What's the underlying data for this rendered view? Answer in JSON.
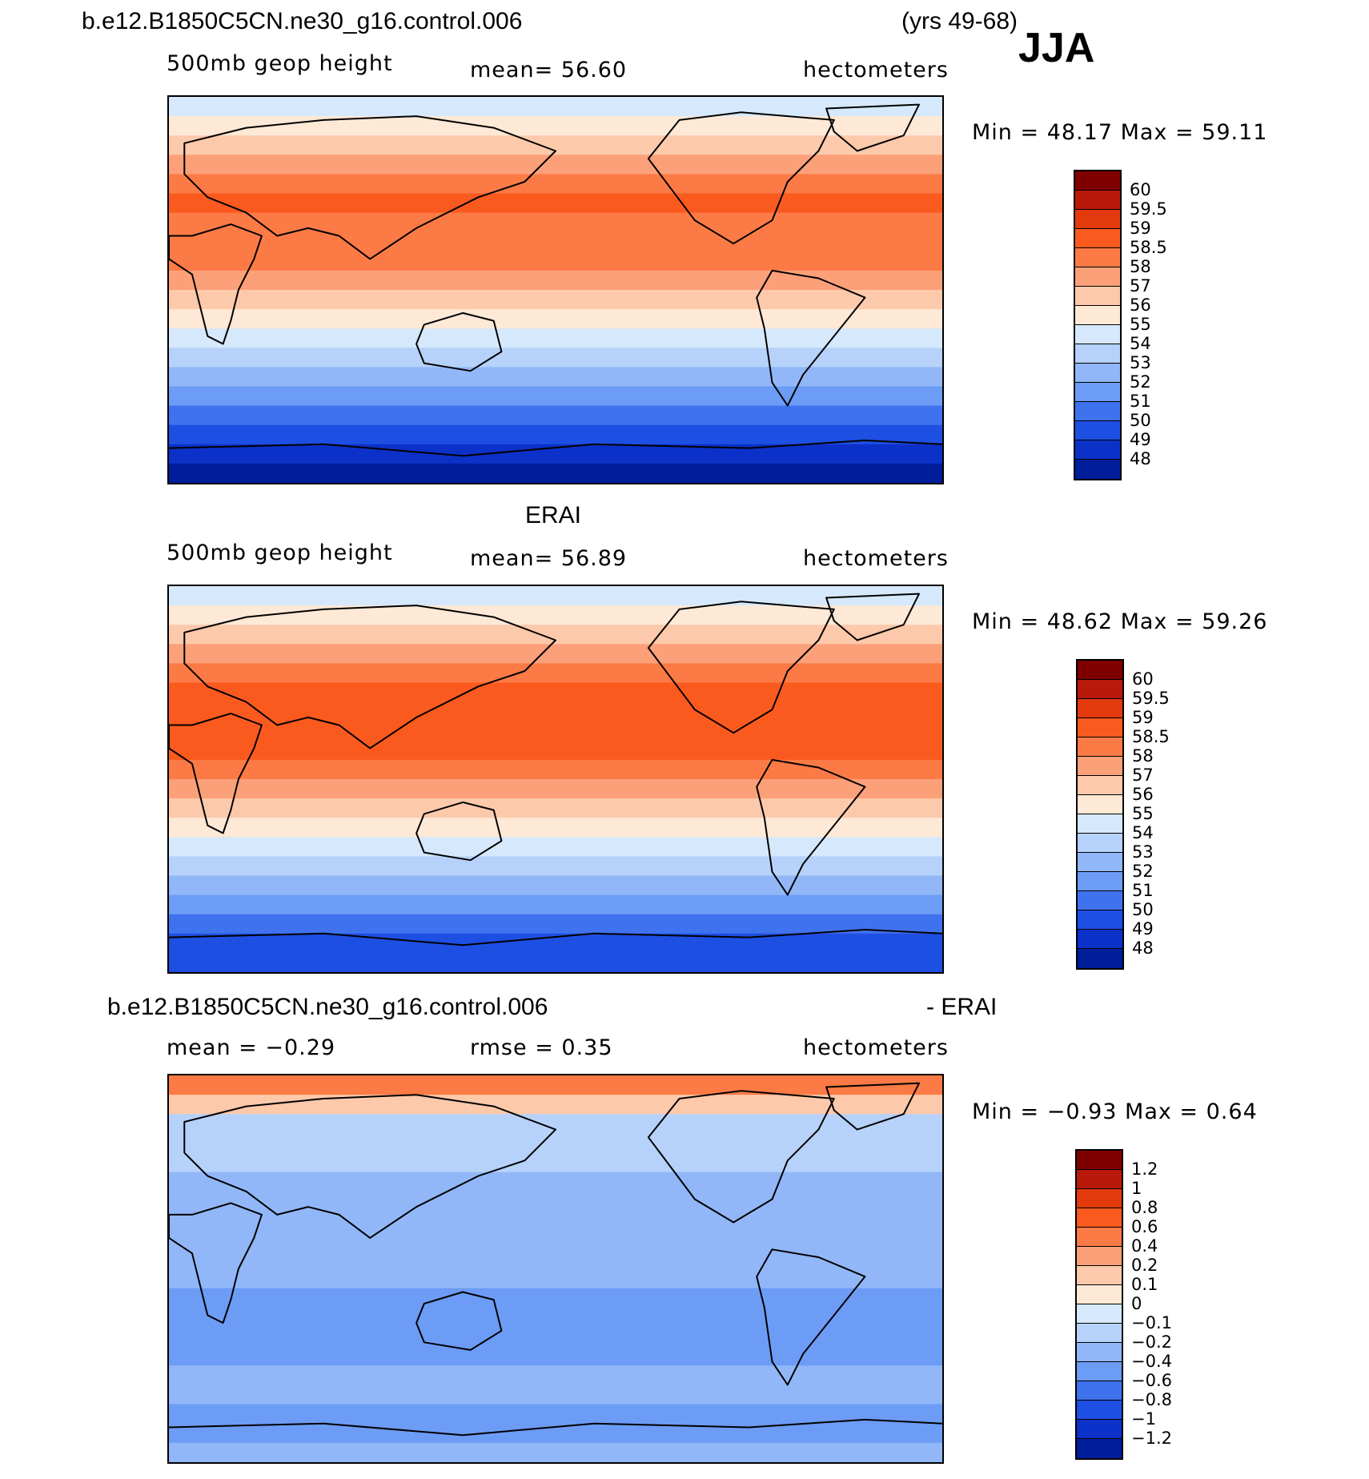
{
  "header": {
    "case_name": "b.e12.B1850C5CN.ne30_g16.control.006",
    "years": "(yrs 49-68)",
    "season": "JJA"
  },
  "panels": [
    {
      "id": "model",
      "title": "",
      "variable": "500mb  geop  height",
      "stat_text": "mean=   56.60",
      "units": "hectometers",
      "minmax_text": "Min  =    48.17  Max  =    59.11",
      "colorbar": {
        "labels": [
          "60",
          "59.5",
          "59",
          "58.5",
          "58",
          "57",
          "56",
          "55",
          "54",
          "53",
          "52",
          "51",
          "50",
          "49",
          "48"
        ],
        "colors": [
          "#7f0000",
          "#b8190a",
          "#e23a0c",
          "#fb5a1f",
          "#fc7a45",
          "#fca07a",
          "#fdc9ab",
          "#fde9d6",
          "#d6e8fb",
          "#b6d2fa",
          "#91b7f8",
          "#6c9cf5",
          "#3f72ee",
          "#1e4fe3",
          "#0b31c8",
          "#001d9a"
        ]
      },
      "map_stripes": [
        "#d6e8fb",
        "#fde9d6",
        "#fdc9ab",
        "#fca07a",
        "#fc7a45",
        "#fb5a1f",
        "#fc7a45",
        "#fc7a45",
        "#fc7a45",
        "#fca07a",
        "#fdc9ab",
        "#fde9d6",
        "#d6e8fb",
        "#b6d2fa",
        "#91b7f8",
        "#6c9cf5",
        "#3f72ee",
        "#1e4fe3",
        "#0b31c8",
        "#001d9a"
      ]
    },
    {
      "id": "obs",
      "title": "ERAI",
      "variable": "500mb  geop  height",
      "stat_text": "mean=   56.89",
      "units": "hectometers",
      "minmax_text": "Min  =    48.62  Max  =    59.26",
      "colorbar": {
        "labels": [
          "60",
          "59.5",
          "59",
          "58.5",
          "58",
          "57",
          "56",
          "55",
          "54",
          "53",
          "52",
          "51",
          "50",
          "49",
          "48"
        ],
        "colors": [
          "#7f0000",
          "#b8190a",
          "#e23a0c",
          "#fb5a1f",
          "#fc7a45",
          "#fca07a",
          "#fdc9ab",
          "#fde9d6",
          "#d6e8fb",
          "#b6d2fa",
          "#91b7f8",
          "#6c9cf5",
          "#3f72ee",
          "#1e4fe3",
          "#0b31c8",
          "#001d9a"
        ]
      },
      "map_stripes": [
        "#d6e8fb",
        "#fde9d6",
        "#fdc9ab",
        "#fca07a",
        "#fc7a45",
        "#fb5a1f",
        "#fb5a1f",
        "#fb5a1f",
        "#fb5a1f",
        "#fc7a45",
        "#fca07a",
        "#fdc9ab",
        "#fde9d6",
        "#d6e8fb",
        "#b6d2fa",
        "#91b7f8",
        "#6c9cf5",
        "#3f72ee",
        "#1e4fe3",
        "#1e4fe3"
      ]
    },
    {
      "id": "diff",
      "title_left": "b.e12.B1850C5CN.ne30_g16.control.006",
      "title_right": "- ERAI",
      "variable": "mean  =    −0.29",
      "stat_text": "rmse  =      0.35",
      "units": "hectometers",
      "minmax_text": "Min  =    −0.93  Max  =       0.64",
      "colorbar": {
        "labels": [
          "1.2",
          "1",
          "0.8",
          "0.6",
          "0.4",
          "0.2",
          "0.1",
          "0",
          "−0.1",
          "−0.2",
          "−0.4",
          "−0.6",
          "−0.8",
          "−1",
          "−1.2"
        ],
        "colors": [
          "#7f0000",
          "#b8190a",
          "#e23a0c",
          "#fb5a1f",
          "#fc7a45",
          "#fca07a",
          "#fdc9ab",
          "#fde9d6",
          "#d6e8fb",
          "#b6d2fa",
          "#91b7f8",
          "#6c9cf5",
          "#3f72ee",
          "#1e4fe3",
          "#0b31c8",
          "#001d9a"
        ]
      },
      "map_stripes": [
        "#fc7a45",
        "#fdc9ab",
        "#b6d2fa",
        "#b6d2fa",
        "#b6d2fa",
        "#91b7f8",
        "#91b7f8",
        "#91b7f8",
        "#91b7f8",
        "#91b7f8",
        "#91b7f8",
        "#6c9cf5",
        "#6c9cf5",
        "#6c9cf5",
        "#6c9cf5",
        "#91b7f8",
        "#91b7f8",
        "#6c9cf5",
        "#6c9cf5",
        "#91b7f8"
      ]
    }
  ]
}
